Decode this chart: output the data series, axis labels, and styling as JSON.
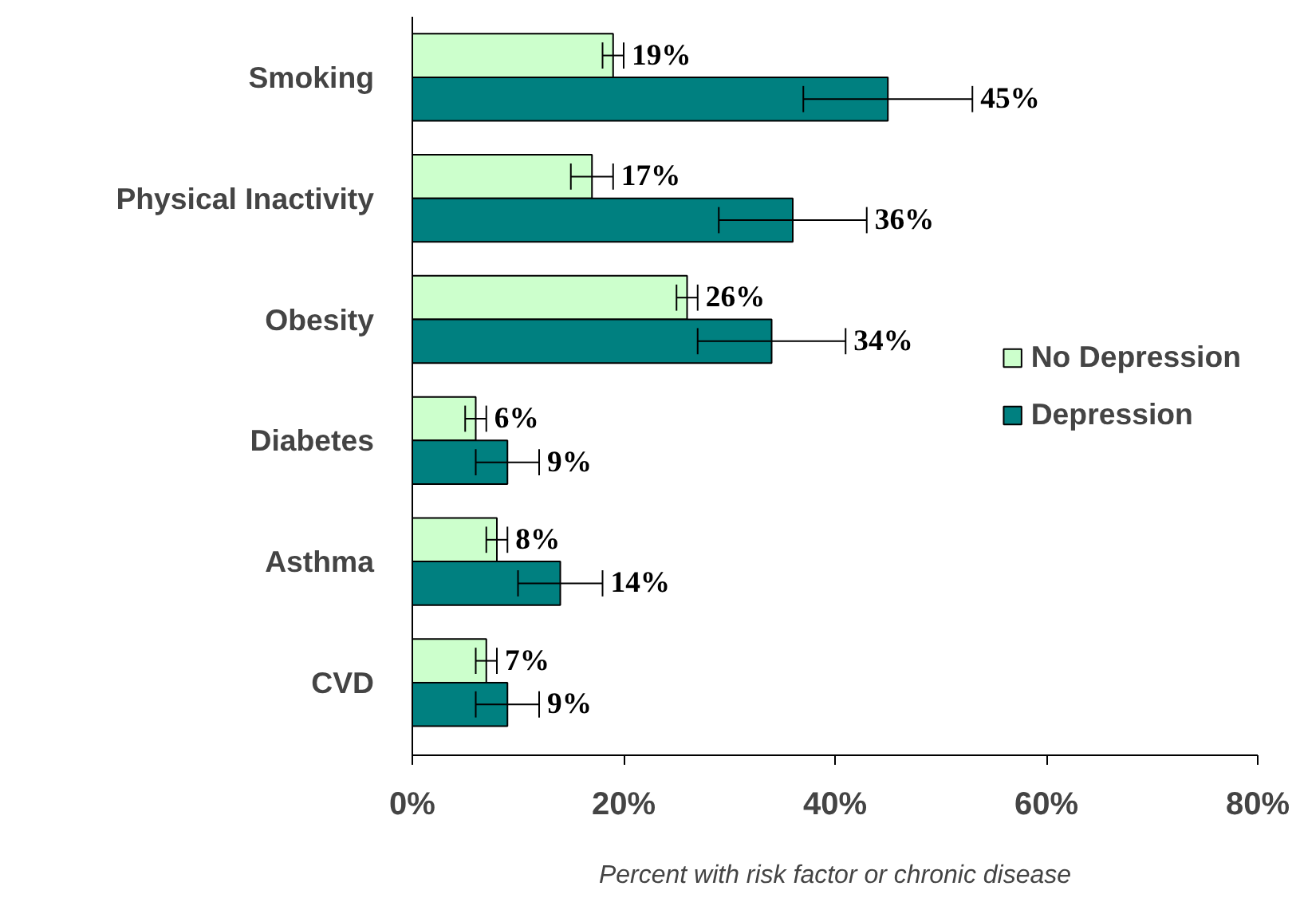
{
  "chart_data": {
    "type": "bar",
    "orientation": "horizontal",
    "categories": [
      "Smoking",
      "Physical Inactivity",
      "Obesity",
      "Diabetes",
      "Asthma",
      "CVD"
    ],
    "series": [
      {
        "name": "No Depression",
        "color": "#ccffcc",
        "values": [
          19,
          17,
          26,
          6,
          8,
          7
        ],
        "errors": [
          1,
          2,
          1,
          1,
          1,
          1
        ],
        "value_labels": [
          "19%",
          "17%",
          "26%",
          "6%",
          "8%",
          "7%"
        ]
      },
      {
        "name": "Depression",
        "color": "#008080",
        "values": [
          45,
          36,
          34,
          9,
          14,
          9
        ],
        "errors": [
          8,
          7,
          7,
          3,
          4,
          3
        ],
        "value_labels": [
          "45%",
          "36%",
          "34%",
          "9%",
          "14%",
          "9%"
        ]
      }
    ],
    "xlabel": "Percent with risk factor or chronic disease",
    "xlim": [
      0,
      80
    ],
    "xticks": [
      {
        "value": 0,
        "label": "0%"
      },
      {
        "value": 20,
        "label": "20%"
      },
      {
        "value": 40,
        "label": "40%"
      },
      {
        "value": 60,
        "label": "60%"
      },
      {
        "value": 80,
        "label": "80%"
      }
    ],
    "legend": "right",
    "grid": false
  }
}
